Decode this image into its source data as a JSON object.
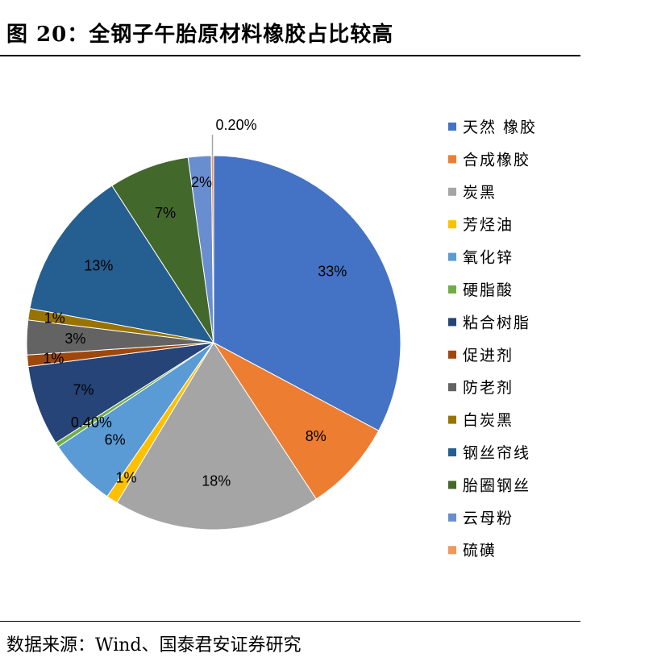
{
  "header": {
    "title": "图 20：全钢子午胎原材料橡胶占比较高"
  },
  "footer": {
    "source": "数据来源：Wind、国泰君安证券研究"
  },
  "chart_data": {
    "type": "pie",
    "title": "",
    "legend_position": "right",
    "slices": [
      {
        "name": "天然 橡胶",
        "value": 33,
        "label": "33%",
        "color": "#4472C4"
      },
      {
        "name": "合成橡胶",
        "value": 8,
        "label": "8%",
        "color": "#ED7D31"
      },
      {
        "name": "炭黑",
        "value": 18,
        "label": "18%",
        "color": "#A5A5A5"
      },
      {
        "name": "芳烃油",
        "value": 1,
        "label": "1%",
        "color": "#FFC000"
      },
      {
        "name": "氧化锌",
        "value": 6,
        "label": "6%",
        "color": "#5B9BD5"
      },
      {
        "name": "硬脂酸",
        "value": 0.4,
        "label": "0.40%",
        "color": "#70AD47"
      },
      {
        "name": "粘合树脂",
        "value": 7,
        "label": "7%",
        "color": "#264478"
      },
      {
        "name": "促进剂",
        "value": 1,
        "label": "1%",
        "color": "#9E480E"
      },
      {
        "name": "防老剂",
        "value": 3,
        "label": "3%",
        "color": "#636363"
      },
      {
        "name": "白炭黑",
        "value": 1,
        "label": "1%",
        "color": "#997300"
      },
      {
        "name": "钢丝帘线",
        "value": 13,
        "label": "13%",
        "color": "#255E91"
      },
      {
        "name": "胎圈钢丝",
        "value": 7,
        "label": "7%",
        "color": "#43682B"
      },
      {
        "name": "云母粉",
        "value": 2,
        "label": "2%",
        "color": "#698ED0"
      },
      {
        "name": "硫磺",
        "value": 0.2,
        "label": "0.20%",
        "color": "#F1975A"
      }
    ]
  }
}
